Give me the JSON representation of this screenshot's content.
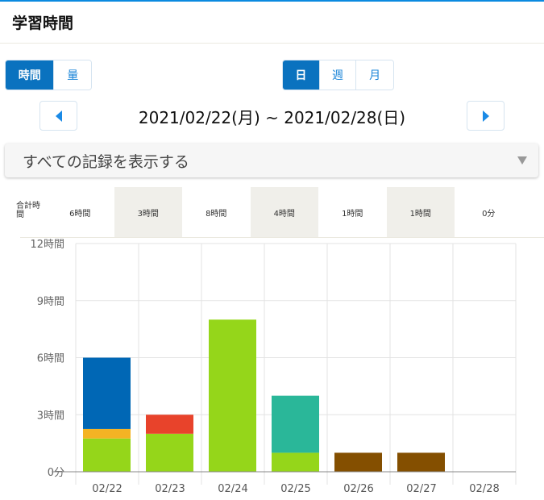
{
  "header": {
    "title": "学習時間"
  },
  "mode_toggle": {
    "items": [
      {
        "label": "時間",
        "active": true
      },
      {
        "label": "量",
        "active": false
      }
    ]
  },
  "period_toggle": {
    "items": [
      {
        "label": "日",
        "active": true
      },
      {
        "label": "週",
        "active": false
      },
      {
        "label": "月",
        "active": false
      }
    ]
  },
  "date_range": "2021/02/22(月) ~ 2021/02/28(日)",
  "filter_select": {
    "value": "すべての記録を表示する"
  },
  "summary": {
    "label": "合計時間",
    "values": [
      "6時間",
      "3時間",
      "8時間",
      "4時間",
      "1時間",
      "1時間",
      "0分"
    ]
  },
  "colors": {
    "accent": "#0a72bf"
  },
  "chart_data": {
    "type": "bar",
    "stacked": true,
    "categories": [
      "02/22",
      "02/23",
      "02/24",
      "02/25",
      "02/26",
      "02/27",
      "02/28"
    ],
    "yticks": [
      "0分",
      "3時間",
      "6時間",
      "9時間",
      "12時間"
    ],
    "ylim": [
      0,
      12
    ],
    "grid": true,
    "series": [
      {
        "color": "#95d61a",
        "values": [
          1.75,
          2,
          8,
          1,
          0,
          0,
          0
        ]
      },
      {
        "color": "#f4b324",
        "values": [
          0.5,
          0,
          0,
          0,
          0,
          0,
          0
        ]
      },
      {
        "color": "#e8432b",
        "values": [
          0,
          1,
          0,
          0,
          0,
          0,
          0
        ]
      },
      {
        "color": "#2ab799",
        "values": [
          0,
          0,
          0,
          3,
          0,
          0,
          0
        ]
      },
      {
        "color": "#0067b5",
        "values": [
          3.75,
          0,
          0,
          0,
          0,
          0,
          0
        ]
      },
      {
        "color": "#844f00",
        "values": [
          0,
          0,
          0,
          0,
          1,
          1,
          0
        ]
      }
    ]
  }
}
